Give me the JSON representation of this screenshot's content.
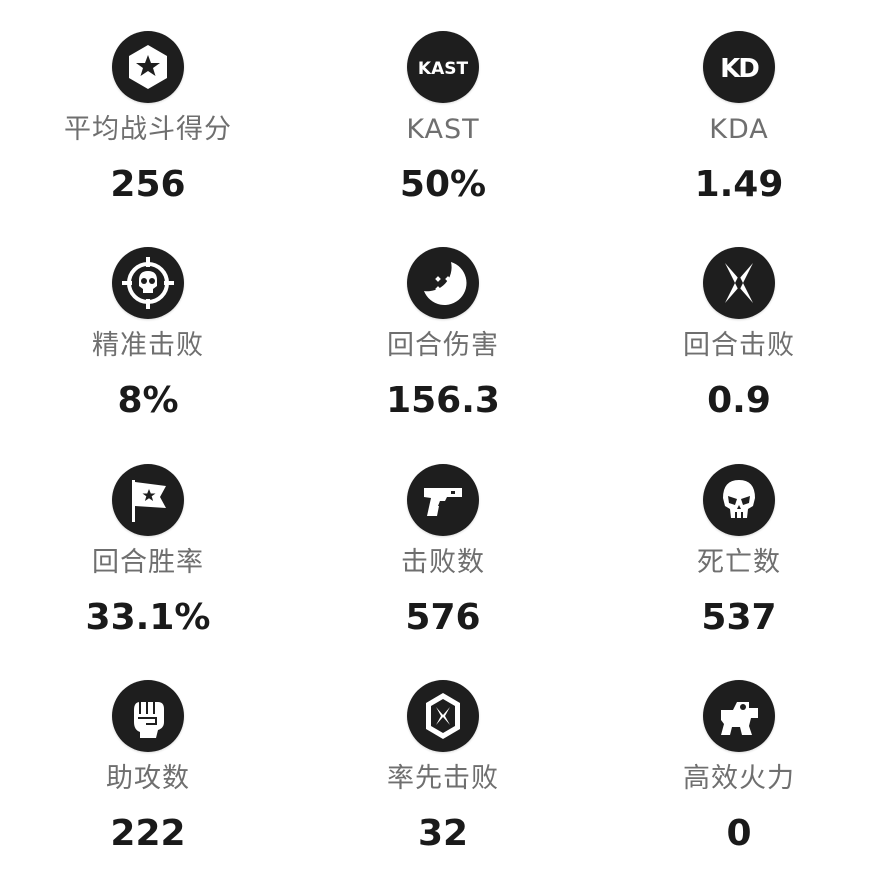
{
  "colors": {
    "icon_bg": "#1e1e1e",
    "icon_fg": "#ffffff",
    "label": "#6f6f6f",
    "value": "#1a1a1a"
  },
  "stats": [
    {
      "label": "平均战斗得分",
      "value": "256",
      "icon": "star-badge-icon"
    },
    {
      "label": "KAST",
      "value": "50%",
      "icon": "kast-icon",
      "icon_text": "KAST"
    },
    {
      "label": "KDA",
      "value": "1.49",
      "icon": "kd-icon",
      "icon_text": "KD"
    },
    {
      "label": "精准击败",
      "value": "8%",
      "icon": "crosshair-skull-icon"
    },
    {
      "label": "回合伤害",
      "value": "156.3",
      "icon": "damage-burst-icon"
    },
    {
      "label": "回合击败",
      "value": "0.9",
      "icon": "crossed-blades-icon"
    },
    {
      "label": "回合胜率",
      "value": "33.1%",
      "icon": "flag-icon"
    },
    {
      "label": "击败数",
      "value": "576",
      "icon": "pistol-icon"
    },
    {
      "label": "死亡数",
      "value": "537",
      "icon": "skull-icon"
    },
    {
      "label": "助攻数",
      "value": "222",
      "icon": "fist-icon"
    },
    {
      "label": "率先击败",
      "value": "32",
      "icon": "first-blood-icon"
    },
    {
      "label": "高效火力",
      "value": "0",
      "icon": "efficient-fire-icon"
    }
  ]
}
